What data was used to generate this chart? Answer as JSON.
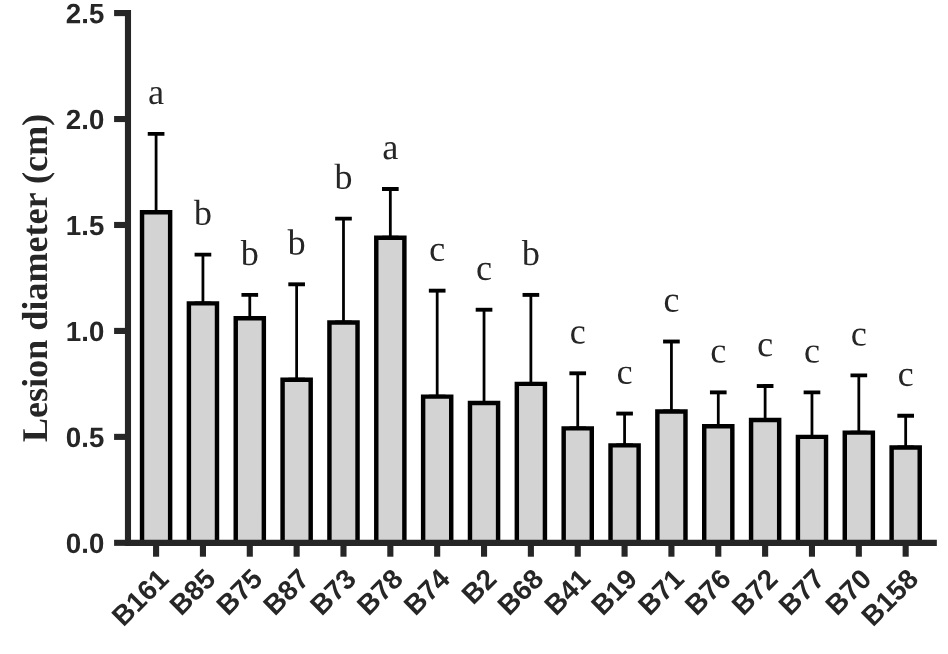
{
  "chart_data": {
    "type": "bar",
    "ylabel": "Lesion diameter (cm)",
    "categories": [
      "B161",
      "B85",
      "B75",
      "B87",
      "B73",
      "B78",
      "B74",
      "B2",
      "B68",
      "B41",
      "B19",
      "B71",
      "B76",
      "B72",
      "B77",
      "B70",
      "B158"
    ],
    "values": [
      1.56,
      1.13,
      1.06,
      0.77,
      1.04,
      1.44,
      0.69,
      0.66,
      0.75,
      0.54,
      0.46,
      0.62,
      0.55,
      0.58,
      0.5,
      0.52,
      0.45
    ],
    "errors": [
      [
        1.56,
        1.93
      ],
      [
        1.13,
        1.36
      ],
      [
        1.06,
        1.17
      ],
      [
        0.77,
        1.22
      ],
      [
        1.04,
        1.53
      ],
      [
        1.44,
        1.67
      ],
      [
        0.69,
        1.19
      ],
      [
        0.66,
        1.1
      ],
      [
        0.75,
        1.17
      ],
      [
        0.54,
        0.8
      ],
      [
        0.46,
        0.61
      ],
      [
        0.62,
        0.95
      ],
      [
        0.55,
        0.71
      ],
      [
        0.58,
        0.74
      ],
      [
        0.5,
        0.71
      ],
      [
        0.52,
        0.79
      ],
      [
        0.45,
        0.6
      ]
    ],
    "color": "#d3d3d3",
    "ylim": [
      0,
      2.5
    ],
    "yticks": [
      {
        "value": 0,
        "label": "0.0"
      },
      {
        "value": 0.5,
        "label": "0.5"
      },
      {
        "value": 1.0,
        "label": "1.0"
      },
      {
        "value": 1.5,
        "label": "1.5"
      },
      {
        "value": 2.0,
        "label": "2.0"
      },
      {
        "value": 2.5,
        "label": "2.5"
      }
    ],
    "grid": false,
    "annotations": [
      "a",
      "b",
      "b",
      "b",
      "b",
      "a",
      "c",
      "c",
      "b",
      "c",
      "c",
      "c",
      "c",
      "c",
      "c",
      "c",
      "c"
    ]
  }
}
